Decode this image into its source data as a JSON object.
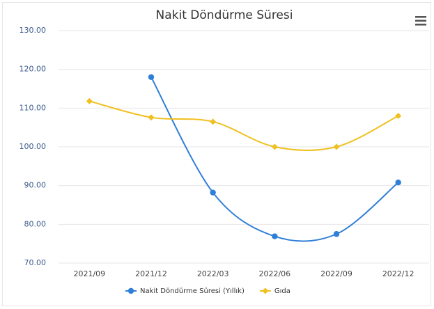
{
  "chart_data": {
    "type": "line",
    "title": "Nakit Döndürme Süresi",
    "categories": [
      "2021/09",
      "2021/12",
      "2022/03",
      "2022/06",
      "2022/09",
      "2022/12"
    ],
    "series": [
      {
        "name": "Nakit Döndürme Süresi (Yıllık)",
        "color": "#2f7ed8",
        "marker": "circle",
        "values": [
          null,
          118,
          88.2,
          76.9,
          77.5,
          90.8
        ]
      },
      {
        "name": "Gıda",
        "color": "#f0c020",
        "marker": "diamond",
        "values": [
          111.8,
          107.6,
          106.5,
          100,
          100,
          108
        ]
      }
    ],
    "ylim": [
      70,
      130
    ],
    "yticks": [
      {
        "value": 70,
        "label": "70.00"
      },
      {
        "value": 80,
        "label": "80.00"
      },
      {
        "value": 90,
        "label": "90.00"
      },
      {
        "value": 100,
        "label": "100.00"
      },
      {
        "value": 110,
        "label": "110.00"
      },
      {
        "value": 120,
        "label": "120.00"
      },
      {
        "value": 130,
        "label": "130.00"
      }
    ],
    "grid": true,
    "smooth": true,
    "legend": "bottom"
  }
}
